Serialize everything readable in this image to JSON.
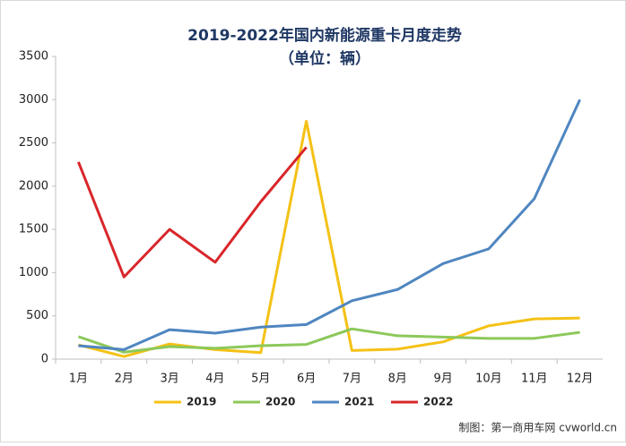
{
  "chart_data": {
    "type": "line",
    "title": "2019-2022年国内新能源重卡月度走势",
    "subtitle": "（单位：辆）",
    "categories": [
      "1月",
      "2月",
      "3月",
      "4月",
      "5月",
      "6月",
      "7月",
      "8月",
      "9月",
      "10月",
      "11月",
      "12月"
    ],
    "series": [
      {
        "name": "2019",
        "color": "#f5c116",
        "values": [
          165,
          30,
          175,
          110,
          75,
          2750,
          100,
          115,
          200,
          385,
          465,
          475
        ]
      },
      {
        "name": "2020",
        "color": "#8cc85a",
        "values": [
          260,
          80,
          145,
          125,
          155,
          170,
          350,
          270,
          255,
          240,
          240,
          310
        ]
      },
      {
        "name": "2021",
        "color": "#4f86c0",
        "values": [
          155,
          110,
          340,
          300,
          370,
          400,
          675,
          805,
          1105,
          1275,
          1855,
          3000
        ]
      },
      {
        "name": "2022",
        "color": "#d9262a",
        "values": [
          2280,
          950,
          1500,
          1120,
          1820,
          2450,
          null,
          null,
          null,
          null,
          null,
          null
        ]
      }
    ],
    "ylim": [
      0,
      3500
    ],
    "yticks": [
      0,
      500,
      1000,
      1500,
      2000,
      2500,
      3000,
      3500
    ],
    "grid": false,
    "legend": "bottom",
    "source": "制图：第一商用车网 cvworld.cn"
  }
}
